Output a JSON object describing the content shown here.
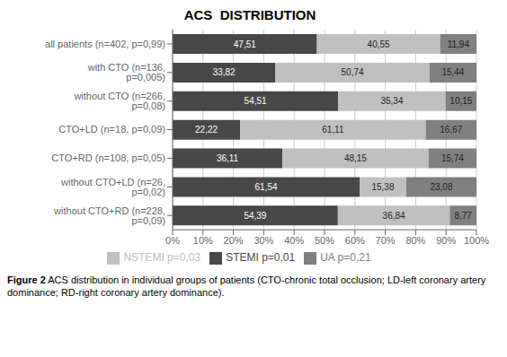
{
  "chart_data": {
    "type": "bar",
    "title": "ACS  DISTRIBUTION",
    "orientation": "horizontal",
    "stacked": true,
    "data_labels": true,
    "grid": true,
    "legend": "bottom",
    "categories": [
      "all patients (n=402, p=0,99)",
      "with CTO (n=136, p=0,005)",
      "without CTO (n=266, p=0,08)",
      "CTO+LD (n=18, p=0,09)",
      "CTO+RD (n=108, p=0,05)",
      "without CTO+LD (n=26, p=0,02)",
      "without CTO+RD (n=228, p=0,09)"
    ],
    "series": [
      {
        "name": "STEMI p=0,01",
        "color": "#484848",
        "values": [
          47.51,
          33.82,
          54.51,
          22.22,
          36.11,
          61.54,
          54.39
        ],
        "value_labels": [
          "47,51",
          "33,82",
          "54,51",
          "22,22",
          "36,11",
          "61,54",
          "54,39"
        ]
      },
      {
        "name": "NSTEMI p=0,03",
        "color": "#c0c0c0",
        "values": [
          40.55,
          50.74,
          35.34,
          61.11,
          48.15,
          15.38,
          36.84
        ],
        "value_labels": [
          "40,55",
          "50,74",
          "35,34",
          "61,11",
          "48,15",
          "15,38",
          "36,84"
        ]
      },
      {
        "name": "UA p=0,21",
        "color": "#808080",
        "values": [
          11.94,
          15.44,
          10.15,
          16.67,
          15.74,
          23.08,
          8.77
        ],
        "value_labels": [
          "11,94",
          "15,44",
          "10,15",
          "16,67",
          "15,74",
          "23,08",
          "8,77"
        ]
      }
    ],
    "xlim": [
      0,
      100
    ],
    "xticks": [
      {
        "value": 0,
        "label": "0%"
      },
      {
        "value": 10,
        "label": "10%"
      },
      {
        "value": 20,
        "label": "20%"
      },
      {
        "value": 30,
        "label": "30%"
      },
      {
        "value": 40,
        "label": "40%"
      },
      {
        "value": 50,
        "label": "50%"
      },
      {
        "value": 60,
        "label": "60%"
      },
      {
        "value": 70,
        "label": "70%"
      },
      {
        "value": 80,
        "label": "80%"
      },
      {
        "value": 90,
        "label": "90%"
      },
      {
        "value": 100,
        "label": "100%"
      }
    ],
    "caption": [
      "Figure 2",
      " ACS distribution in individual groups of patients (CTO-chronic total occlusion; LD-left coronary artery dominance; RD-right coronary artery dominance)."
    ]
  }
}
